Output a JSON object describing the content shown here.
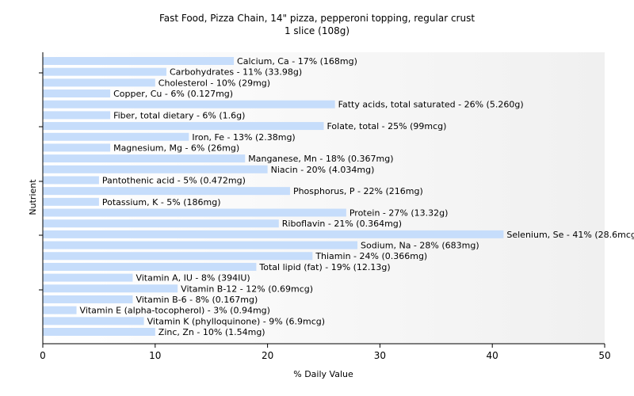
{
  "chart_data": {
    "type": "bar",
    "orientation": "horizontal",
    "title": "Fast Food, Pizza Chain, 14\" pizza, pepperoni topping, regular crust",
    "subtitle": "1 slice (108g)",
    "xlabel": "% Daily Value",
    "ylabel": "Nutrient",
    "xlim": [
      0,
      50
    ],
    "xticks": [
      "0",
      "10",
      "20",
      "30",
      "40",
      "50"
    ],
    "grid": false,
    "bar_color": "#c6ddfb",
    "categories": [
      "Calcium, Ca",
      "Carbohydrates",
      "Cholesterol",
      "Copper, Cu",
      "Fatty acids, total saturated",
      "Fiber, total dietary",
      "Folate, total",
      "Iron, Fe",
      "Magnesium, Mg",
      "Manganese, Mn",
      "Niacin",
      "Pantothenic acid",
      "Phosphorus, P",
      "Potassium, K",
      "Protein",
      "Riboflavin",
      "Selenium, Se",
      "Sodium, Na",
      "Thiamin",
      "Total lipid (fat)",
      "Vitamin A, IU",
      "Vitamin B-12",
      "Vitamin B-6",
      "Vitamin E (alpha-tocopherol)",
      "Vitamin K (phylloquinone)",
      "Zinc, Zn"
    ],
    "values": [
      17,
      11,
      10,
      6,
      26,
      6,
      25,
      13,
      6,
      18,
      20,
      5,
      22,
      5,
      27,
      21,
      41,
      28,
      24,
      19,
      8,
      12,
      8,
      3,
      9,
      10
    ],
    "labels": [
      "Calcium, Ca - 17% (168mg)",
      "Carbohydrates - 11% (33.98g)",
      "Cholesterol - 10% (29mg)",
      "Copper, Cu - 6% (0.127mg)",
      "Fatty acids, total saturated - 26% (5.260g)",
      "Fiber, total dietary - 6% (1.6g)",
      "Folate, total - 25% (99mcg)",
      "Iron, Fe - 13% (2.38mg)",
      "Magnesium, Mg - 6% (26mg)",
      "Manganese, Mn - 18% (0.367mg)",
      "Niacin - 20% (4.034mg)",
      "Pantothenic acid - 5% (0.472mg)",
      "Phosphorus, P - 22% (216mg)",
      "Potassium, K - 5% (186mg)",
      "Protein - 27% (13.32g)",
      "Riboflavin - 21% (0.364mg)",
      "Selenium, Se - 41% (28.6mcg)",
      "Sodium, Na - 28% (683mg)",
      "Thiamin - 24% (0.366mg)",
      "Total lipid (fat) - 19% (12.13g)",
      "Vitamin A, IU - 8% (394IU)",
      "Vitamin B-12 - 12% (0.69mcg)",
      "Vitamin B-6 - 8% (0.167mg)",
      "Vitamin E (alpha-tocopherol) - 3% (0.94mg)",
      "Vitamin K (phylloquinone) - 9% (6.9mcg)",
      "Zinc, Zn - 10% (1.54mg)"
    ]
  }
}
